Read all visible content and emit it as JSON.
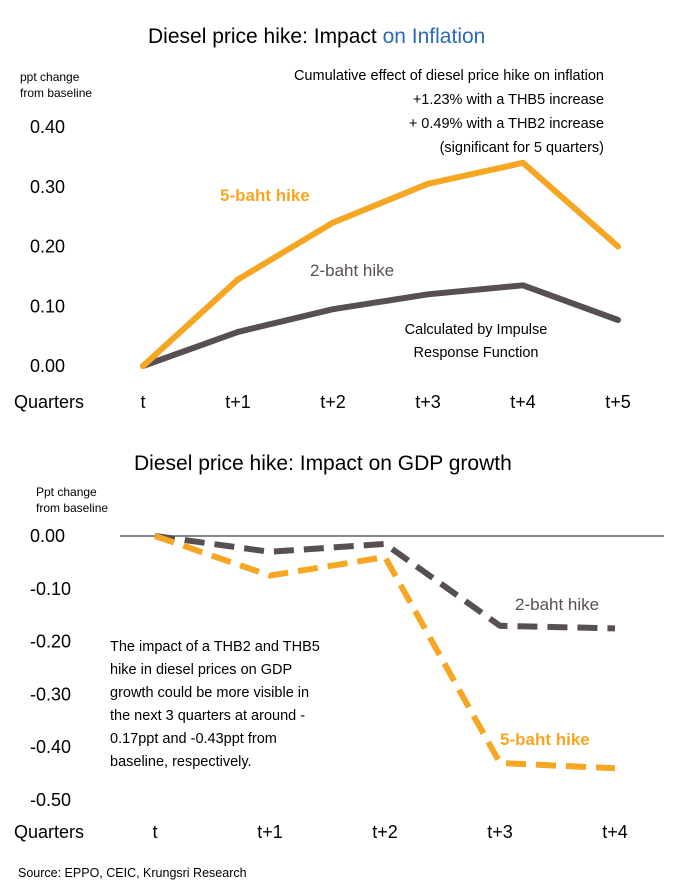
{
  "chart_data": [
    {
      "type": "line",
      "title_main": "Diesel price hike: Impact ",
      "title_accent": "on Inflation",
      "colors": {
        "title_accent": "#2b6cb0"
      },
      "unit_label": [
        "ppt change",
        "from baseline"
      ],
      "x_axis_name": "Quarters",
      "categories": [
        "t",
        "t+1",
        "t+2",
        "t+3",
        "t+4",
        "t+5"
      ],
      "y_tick_labels": [
        "0.00",
        "0.10",
        "0.20",
        "0.30",
        "0.40"
      ],
      "ylim": [
        0,
        0.4
      ],
      "grid": false,
      "line_style": "solid",
      "series": [
        {
          "name": "5-baht hike",
          "color": "#f5a623",
          "values": [
            0,
            0.145,
            0.24,
            0.305,
            0.34,
            0.2
          ]
        },
        {
          "name": "2-baht hike",
          "color": "#584f52",
          "values": [
            0,
            0.057,
            0.095,
            0.12,
            0.135,
            0.077
          ]
        }
      ],
      "annotation_lines": [
        "Cumulative effect of diesel price hike on inflation",
        "+1.23% with a THB5 increase",
        "+ 0.49% with a THB2 increase",
        "(significant for 5 quarters)"
      ],
      "note_lines": [
        "Calculated by Impulse",
        "Response Function"
      ]
    },
    {
      "type": "line",
      "title": "Diesel price hike: Impact on GDP growth",
      "unit_label": [
        "Ppt change",
        "from baseline"
      ],
      "x_axis_name": "Quarters",
      "categories": [
        "t",
        "t+1",
        "t+2",
        "t+3",
        "t+4"
      ],
      "y_tick_labels": [
        "0.00",
        "-0.10",
        "-0.20",
        "-0.30",
        "-0.40",
        "-0.50"
      ],
      "ylim": [
        -0.5,
        0
      ],
      "grid": false,
      "line_style": "dashed",
      "series": [
        {
          "name": "5-baht hike",
          "color": "#f5a623",
          "values": [
            0,
            -0.075,
            -0.04,
            -0.43,
            -0.44
          ]
        },
        {
          "name": "2-baht hike",
          "color": "#584f52",
          "values": [
            0,
            -0.03,
            -0.015,
            -0.17,
            -0.175
          ]
        }
      ],
      "note_lines": [
        "The impact of a THB2 and THB5",
        "hike in diesel prices on GDP",
        "growth could be more visible in",
        "the next 3 quarters at around -",
        "0.17ppt and -0.43ppt from",
        "baseline, respectively."
      ]
    }
  ],
  "source": "Source: EPPO, CEIC, Krungsri Research"
}
